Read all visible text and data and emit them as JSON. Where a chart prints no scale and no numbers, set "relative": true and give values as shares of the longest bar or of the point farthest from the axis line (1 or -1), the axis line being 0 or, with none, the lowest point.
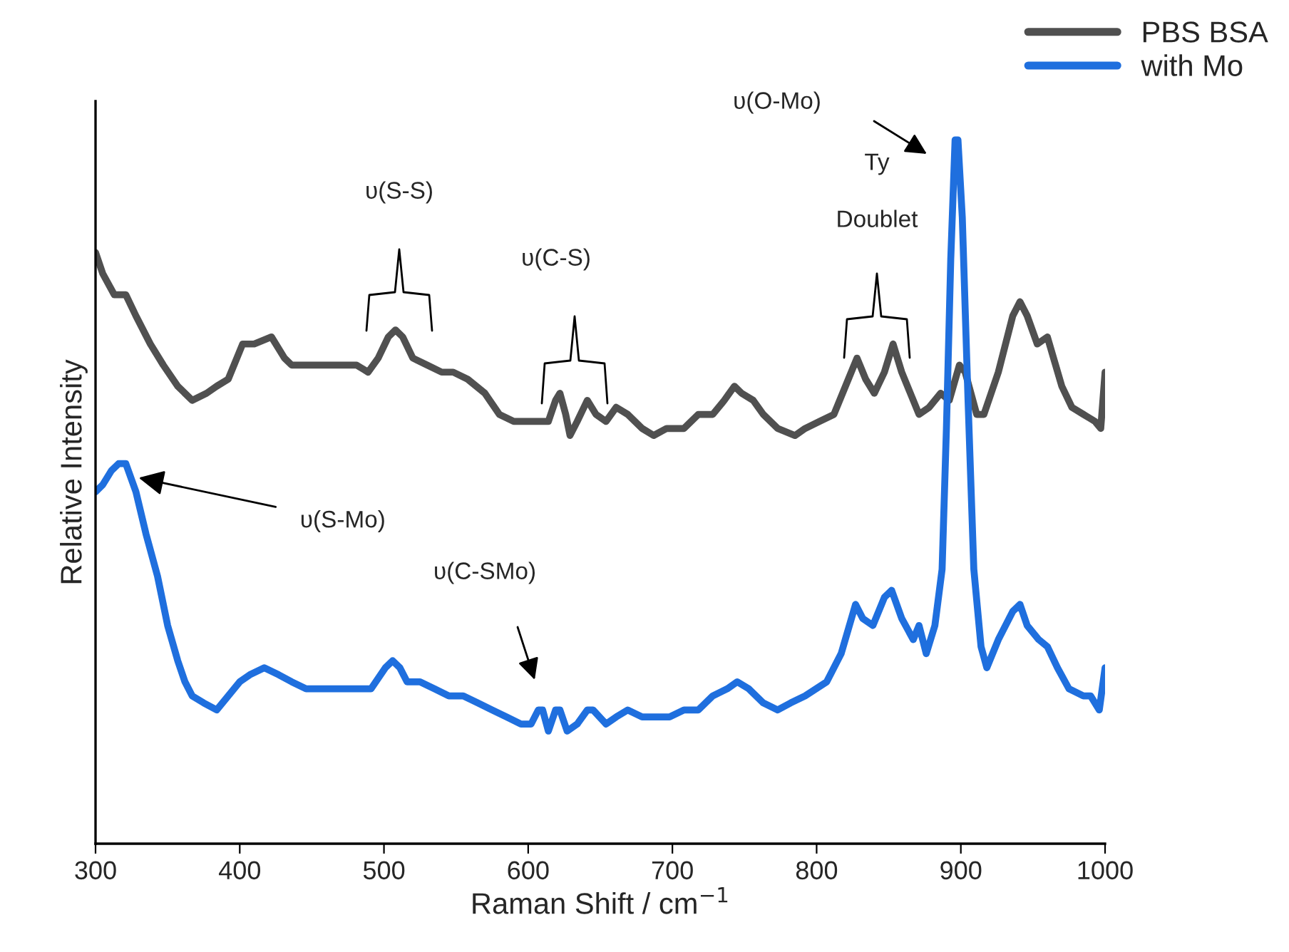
{
  "chart_data": {
    "type": "line",
    "relative": true,
    "xlabel": "Raman Shift / cm$^{−1}$",
    "ylabel": "Relative Intensity",
    "xlim": [
      300,
      1000
    ],
    "xticks": [
      300,
      400,
      500,
      600,
      700,
      800,
      900,
      1000
    ],
    "grid": false,
    "legend": "top right",
    "line_style": "solid",
    "marker": "none",
    "series": [
      {
        "name": "PBS BSA",
        "color": "#505050",
        "x": [
          300,
          305,
          313,
          321,
          328,
          338,
          347,
          357,
          367,
          377,
          384,
          392,
          402,
          410,
          422,
          431,
          436,
          446,
          456,
          463,
          471,
          481,
          489,
          496,
          503,
          508,
          513,
          520,
          530,
          540,
          548,
          558,
          570,
          580,
          590,
          602,
          609,
          614,
          619,
          622,
          626,
          629,
          634,
          641,
          647,
          654,
          661,
          669,
          679,
          687,
          696,
          708,
          718,
          728,
          736,
          743,
          748,
          756,
          763,
          773,
          785,
          792,
          802,
          812,
          822,
          828,
          834,
          840,
          847,
          853,
          859,
          867,
          871,
          878,
          886,
          892,
          899,
          903,
          911,
          916,
          926,
          936,
          941,
          946,
          953,
          960,
          970,
          977,
          985,
          993,
          997,
          1000
        ],
        "values": [
          0.84,
          0.81,
          0.78,
          0.78,
          0.75,
          0.71,
          0.68,
          0.65,
          0.63,
          0.64,
          0.65,
          0.66,
          0.71,
          0.71,
          0.72,
          0.69,
          0.68,
          0.68,
          0.68,
          0.68,
          0.68,
          0.68,
          0.67,
          0.69,
          0.72,
          0.73,
          0.72,
          0.69,
          0.68,
          0.67,
          0.67,
          0.66,
          0.64,
          0.61,
          0.6,
          0.6,
          0.6,
          0.6,
          0.63,
          0.64,
          0.61,
          0.58,
          0.6,
          0.63,
          0.61,
          0.6,
          0.62,
          0.61,
          0.59,
          0.58,
          0.59,
          0.59,
          0.61,
          0.61,
          0.63,
          0.65,
          0.64,
          0.63,
          0.61,
          0.59,
          0.58,
          0.59,
          0.6,
          0.61,
          0.66,
          0.69,
          0.66,
          0.64,
          0.67,
          0.71,
          0.67,
          0.63,
          0.61,
          0.62,
          0.64,
          0.63,
          0.68,
          0.67,
          0.61,
          0.61,
          0.67,
          0.75,
          0.77,
          0.75,
          0.71,
          0.72,
          0.65,
          0.62,
          0.61,
          0.6,
          0.59,
          0.67
        ]
      },
      {
        "name": "with Mo",
        "color": "#1f6fde",
        "x": [
          300,
          305,
          311,
          316,
          321,
          328,
          335,
          343,
          350,
          357,
          362,
          367,
          375,
          384,
          392,
          400,
          407,
          417,
          427,
          436,
          446,
          456,
          466,
          481,
          491,
          501,
          506,
          511,
          516,
          525,
          535,
          545,
          555,
          565,
          575,
          585,
          595,
          602,
          607,
          610,
          614,
          619,
          622,
          627,
          634,
          641,
          645,
          654,
          661,
          669,
          679,
          689,
          698,
          708,
          718,
          728,
          738,
          745,
          753,
          763,
          773,
          782,
          792,
          807,
          817,
          827,
          832,
          839,
          847,
          852,
          859,
          867,
          871,
          876,
          882,
          887,
          890,
          893,
          896,
          898,
          901,
          905,
          909,
          914,
          918,
          926,
          936,
          941,
          946,
          954,
          960,
          967,
          975,
          985,
          990,
          996,
          1000
        ],
        "values": [
          0.5,
          0.51,
          0.53,
          0.54,
          0.54,
          0.5,
          0.44,
          0.38,
          0.31,
          0.26,
          0.23,
          0.21,
          0.2,
          0.19,
          0.21,
          0.23,
          0.24,
          0.25,
          0.24,
          0.23,
          0.22,
          0.22,
          0.22,
          0.22,
          0.22,
          0.25,
          0.26,
          0.25,
          0.23,
          0.23,
          0.22,
          0.21,
          0.21,
          0.2,
          0.19,
          0.18,
          0.17,
          0.17,
          0.19,
          0.19,
          0.16,
          0.19,
          0.19,
          0.16,
          0.17,
          0.19,
          0.19,
          0.17,
          0.18,
          0.19,
          0.18,
          0.18,
          0.18,
          0.19,
          0.19,
          0.21,
          0.22,
          0.23,
          0.22,
          0.2,
          0.19,
          0.2,
          0.21,
          0.23,
          0.27,
          0.34,
          0.32,
          0.31,
          0.35,
          0.36,
          0.32,
          0.29,
          0.31,
          0.27,
          0.31,
          0.39,
          0.59,
          0.83,
          1.0,
          1.0,
          0.89,
          0.63,
          0.39,
          0.28,
          0.25,
          0.29,
          0.33,
          0.34,
          0.31,
          0.29,
          0.28,
          0.25,
          0.22,
          0.21,
          0.21,
          0.19,
          0.25
        ]
      }
    ],
    "annotations": [
      "υ(S-S)",
      "υ(C-S)",
      "Ty",
      "Doublet",
      "υ(O-Mo)",
      {
        "text": "υ(S-Mo)",
        "x": 330,
        "y": 0.52
      },
      "υ(C-SMo)"
    ]
  }
}
